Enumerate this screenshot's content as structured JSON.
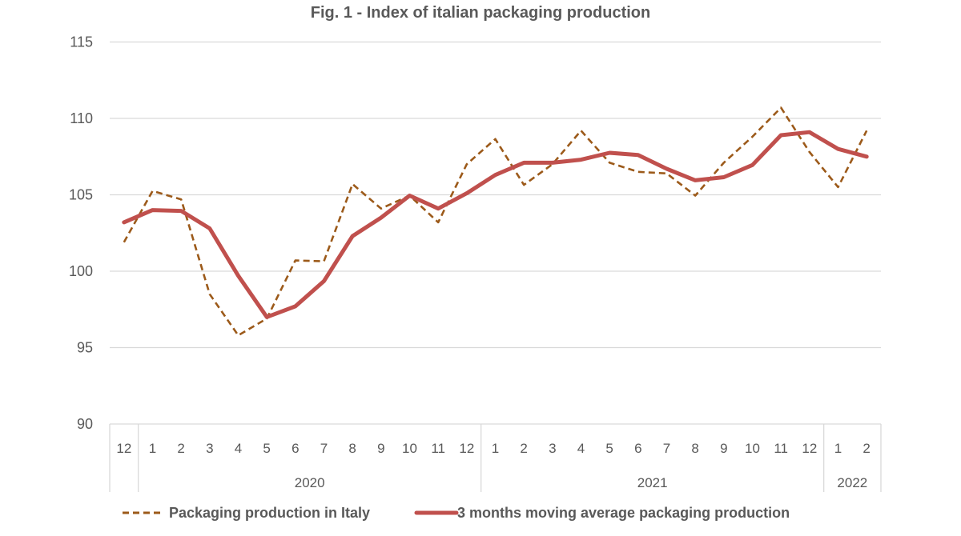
{
  "chart_data": {
    "type": "line",
    "title": "Fig. 1 - Index of italian packaging production",
    "xlabel": "",
    "ylabel": "",
    "ylim": [
      90,
      115
    ],
    "yticks": [
      90,
      95,
      100,
      105,
      110,
      115
    ],
    "grid": true,
    "legend_position": "bottom",
    "categories": [
      "12",
      "1",
      "2",
      "3",
      "4",
      "5",
      "6",
      "7",
      "8",
      "9",
      "10",
      "11",
      "12",
      "1",
      "2",
      "3",
      "4",
      "5",
      "6",
      "7",
      "8",
      "9",
      "10",
      "11",
      "12",
      "1",
      "2"
    ],
    "category_groups": [
      {
        "label": "",
        "count": 1
      },
      {
        "label": "2020",
        "count": 12
      },
      {
        "label": "2021",
        "count": 12
      },
      {
        "label": "2022",
        "count": 2
      }
    ],
    "series": [
      {
        "name": "Packaging production in Italy",
        "style": "dashed",
        "color": "#9C5A1A",
        "values": [
          101.9,
          105.25,
          104.7,
          98.5,
          95.8,
          96.9,
          100.7,
          100.65,
          105.7,
          104.1,
          104.95,
          103.2,
          107.0,
          108.65,
          105.65,
          107.0,
          109.2,
          107.1,
          106.5,
          106.4,
          104.95,
          107.1,
          108.8,
          110.7,
          107.8,
          105.5,
          109.2
        ]
      },
      {
        "name": "3 months moving average packaging production",
        "style": "solid",
        "color": "#C0504D",
        "values": [
          103.2,
          104.0,
          103.95,
          102.8,
          99.7,
          97.0,
          97.7,
          99.35,
          102.3,
          103.5,
          104.95,
          104.1,
          105.1,
          106.3,
          107.1,
          107.1,
          107.3,
          107.75,
          107.6,
          106.7,
          105.95,
          106.15,
          106.95,
          108.9,
          109.1,
          108.0,
          107.5
        ]
      }
    ]
  }
}
